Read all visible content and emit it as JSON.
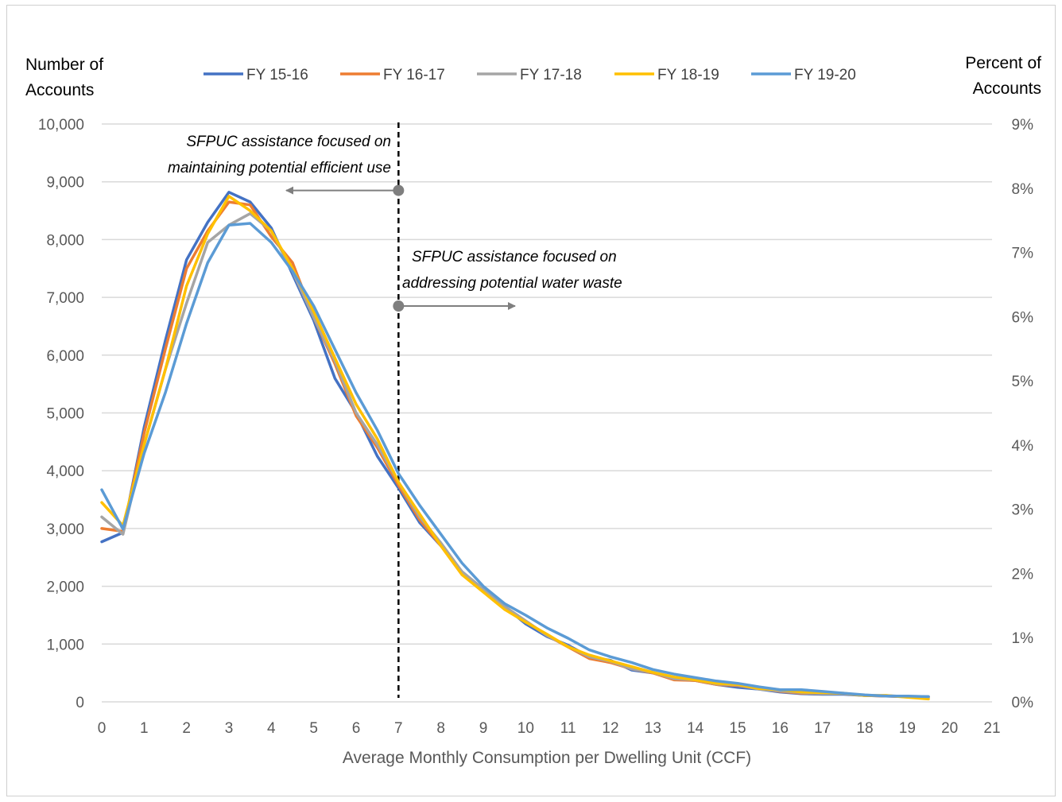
{
  "chart_data": {
    "type": "line",
    "xlabel": "Average Monthly Consumption per Dwelling Unit (CCF)",
    "ylabel_left": [
      "Number of",
      "Accounts"
    ],
    "ylabel_right": [
      "Percent of",
      "Accounts"
    ],
    "xlim": [
      0,
      21
    ],
    "ylim": [
      0,
      10000
    ],
    "y2lim": [
      0,
      9
    ],
    "x_ticks": [
      "0",
      "1",
      "2",
      "3",
      "4",
      "5",
      "6",
      "7",
      "8",
      "9",
      "10",
      "11",
      "12",
      "13",
      "14",
      "15",
      "16",
      "17",
      "18",
      "19",
      "20",
      "21"
    ],
    "y_ticks": [
      "0",
      "1,000",
      "2,000",
      "3,000",
      "4,000",
      "5,000",
      "6,000",
      "7,000",
      "8,000",
      "9,000",
      "10,000"
    ],
    "y2_ticks": [
      "0%",
      "1%",
      "2%",
      "3%",
      "4%",
      "5%",
      "6%",
      "7%",
      "8%",
      "9%"
    ],
    "grid": true,
    "legend_position": "top",
    "x": [
      0,
      0.5,
      1,
      1.5,
      2,
      2.5,
      3,
      3.5,
      4,
      4.5,
      5,
      5.5,
      6,
      6.5,
      7,
      7.5,
      8,
      8.5,
      9,
      9.5,
      10,
      10.5,
      11,
      11.5,
      12,
      12.5,
      13,
      13.5,
      14,
      14.5,
      15,
      15.5,
      16,
      16.5,
      17,
      17.5,
      18,
      18.5,
      19,
      19.5
    ],
    "series": [
      {
        "name": "FY 15-16",
        "color": "#4472C4",
        "values": [
          2770,
          2930,
          4750,
          6250,
          7650,
          8300,
          8820,
          8650,
          8200,
          7400,
          6600,
          5600,
          5000,
          4250,
          3700,
          3100,
          2700,
          2250,
          1950,
          1650,
          1350,
          1130,
          980,
          780,
          720,
          550,
          500,
          390,
          370,
          300,
          250,
          220,
          170,
          140,
          130,
          130,
          110,
          100,
          90,
          90
        ]
      },
      {
        "name": "FY 16-17",
        "color": "#ED7D31",
        "values": [
          3000,
          2950,
          4650,
          6100,
          7500,
          8150,
          8650,
          8600,
          8050,
          7600,
          6650,
          5850,
          4950,
          4400,
          3750,
          3150,
          2700,
          2200,
          1950,
          1650,
          1400,
          1150,
          950,
          750,
          680,
          570,
          500,
          380,
          370,
          300,
          280,
          230,
          180,
          150,
          140,
          140,
          110,
          100,
          90,
          80
        ]
      },
      {
        "name": "FY 17-18",
        "color": "#A5A5A5",
        "values": [
          3200,
          2900,
          4450,
          5750,
          6900,
          7950,
          8250,
          8450,
          8150,
          7450,
          6650,
          5900,
          5000,
          4450,
          3800,
          3200,
          2750,
          2250,
          1950,
          1650,
          1400,
          1150,
          960,
          780,
          700,
          570,
          510,
          400,
          380,
          310,
          290,
          220,
          190,
          160,
          140,
          140,
          110,
          110,
          90,
          90
        ]
      },
      {
        "name": "FY 18-19",
        "color": "#FFC000",
        "values": [
          3450,
          3050,
          4450,
          5750,
          7200,
          8100,
          8750,
          8500,
          8150,
          7500,
          6750,
          5950,
          5150,
          4550,
          3800,
          3250,
          2700,
          2200,
          1900,
          1600,
          1380,
          1170,
          950,
          810,
          710,
          610,
          510,
          430,
          380,
          320,
          300,
          230,
          210,
          170,
          160,
          150,
          110,
          110,
          80,
          50
        ]
      },
      {
        "name": "FY 19-20",
        "color": "#5B9BD5",
        "values": [
          3670,
          2990,
          4300,
          5350,
          6550,
          7600,
          8250,
          8280,
          7950,
          7450,
          6850,
          6100,
          5350,
          4700,
          3950,
          3400,
          2900,
          2400,
          2000,
          1700,
          1500,
          1280,
          1100,
          900,
          780,
          680,
          560,
          480,
          420,
          360,
          320,
          260,
          210,
          210,
          180,
          150,
          120,
          100,
          100,
          90
        ]
      }
    ],
    "annotations": [
      {
        "lines": [
          "SFPUC assistance focused on",
          "maintaining potential  efficient use"
        ],
        "arrow": "left"
      },
      {
        "lines": [
          "SFPUC assistance focused on",
          "addressing potential water waste"
        ],
        "arrow": "right"
      }
    ],
    "reference_line_x": 7,
    "colors": {
      "grid": "#d9d9d9",
      "tick_text": "#595959",
      "annotation_arrow": "#7f7f7f",
      "reference_line": "#000000"
    }
  }
}
